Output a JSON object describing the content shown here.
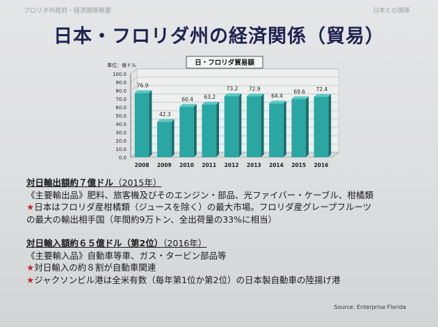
{
  "header": {
    "left": "フロリダ州政府・経済関係概要",
    "right": "日本との関係"
  },
  "title": "日本・フロリダ州の経済関係（貿易）",
  "chart_data": {
    "type": "bar",
    "title": "日・フロリダ貿易額",
    "ylabel": "単位：億ドル",
    "categories": [
      "2008",
      "2009",
      "2010",
      "2011",
      "2012",
      "2013",
      "2014",
      "2015",
      "2016"
    ],
    "values": [
      76.9,
      42.3,
      60.4,
      63.2,
      73.2,
      72.9,
      64.4,
      69.6,
      72.4
    ],
    "value_labels": [
      "76.9",
      "42.3",
      "60.4",
      "63.2",
      "73.2",
      "72.9",
      "64.4",
      "69.6",
      "72.4"
    ],
    "yticks": [
      "100.0",
      "90.0",
      "80.0",
      "70.0",
      "60.0",
      "50.0",
      "40.0",
      "30.0",
      "20.0",
      "10.0",
      "0.0"
    ],
    "ylim": [
      0,
      100
    ],
    "grid": true,
    "colors": {
      "bar_front": "#2aa7a3",
      "bar_side": "#1b6f6e",
      "bar_top": "#5cc8c3",
      "floor": "#d7d9d9"
    }
  },
  "export": {
    "heading": "対日輸出額約７億ドル",
    "note": "（2015年）",
    "lines": [
      {
        "star": false,
        "text": "《主要輸出品》肥料、旅客機及びそのエンジン・部品、光ファイバー・ケーブル、柑橘類"
      },
      {
        "star": true,
        "text": "日本はフロリダ産柑橘類（ジュースを除く）の最大市場。フロリダ産グレープフルーツ"
      },
      {
        "star": false,
        "text": "の最大の輸出相手国（年間約9万トン、全出荷量の33%に相当）"
      }
    ]
  },
  "import": {
    "heading": "対日輸入額約６５億ドル（第2位）",
    "note": "（2016年）",
    "lines": [
      {
        "star": false,
        "text": "《主要輸入品》自動車等車、ガス・タービン部品等"
      },
      {
        "star": true,
        "text": "対日輸入の約８割が自動車関連"
      },
      {
        "star": true,
        "text": "ジャクソンビル港は全米有数（毎年第1位か第2位）の日本製自動車の陸揚げ港"
      }
    ]
  },
  "star_symbol": "★",
  "source": "Source: Enterprise Florida"
}
